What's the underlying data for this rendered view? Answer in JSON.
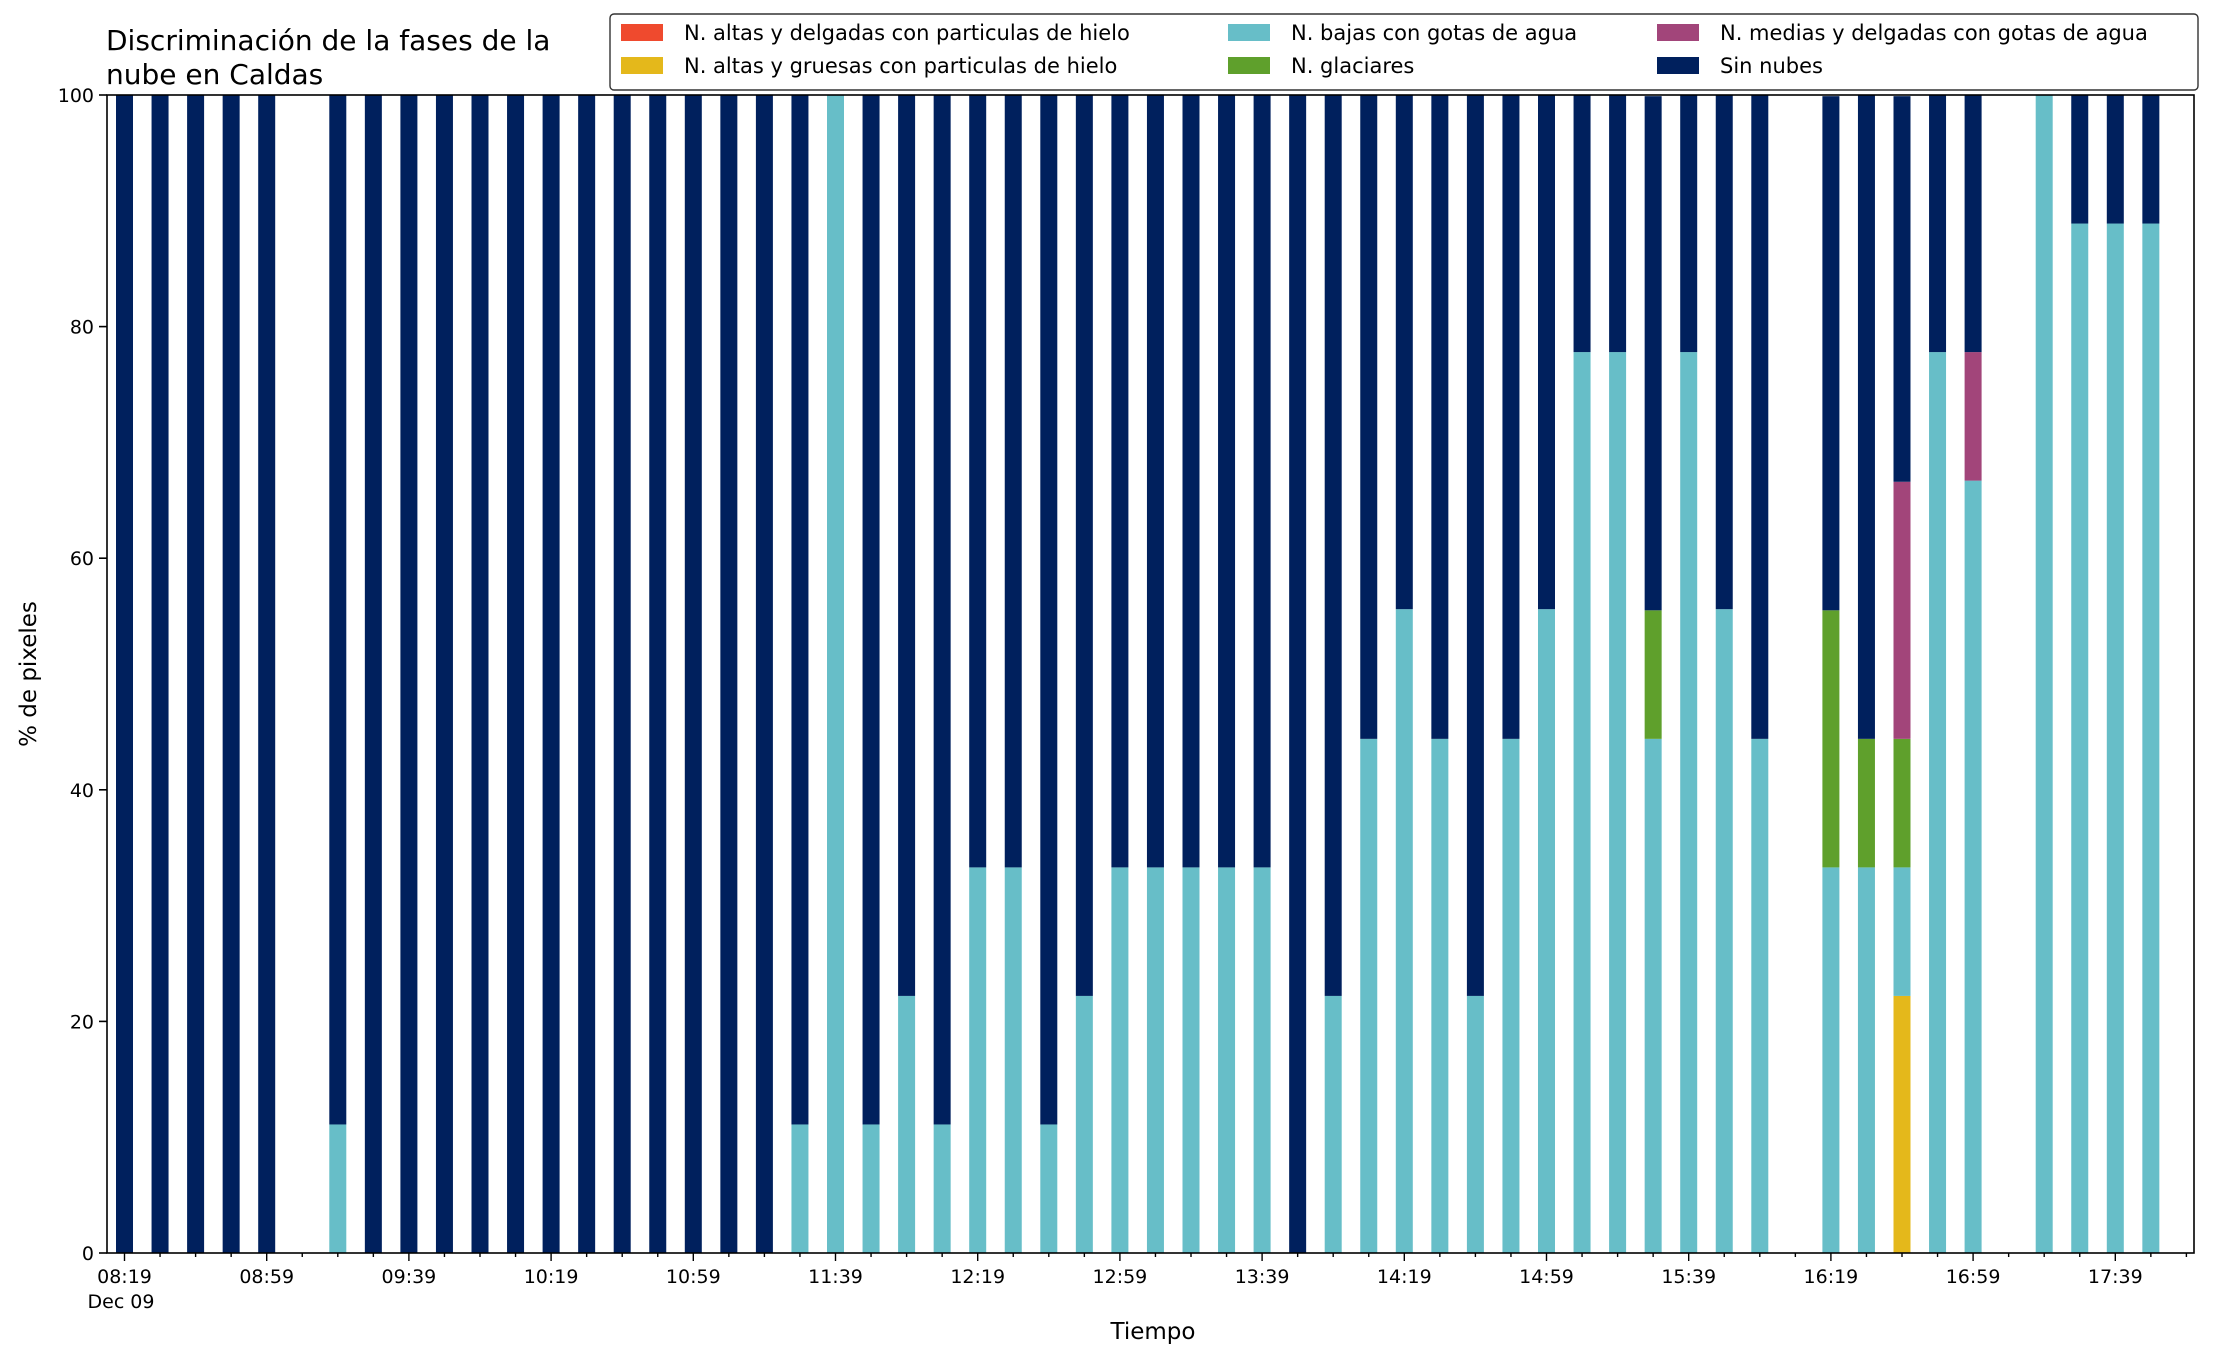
{
  "chart_data": {
    "type": "bar",
    "stacked": true,
    "title": "Discriminación de la fases de la\nnube en Caldas",
    "xlabel": "Tiempo",
    "ylabel": "% de pixeles",
    "ylim": [
      0,
      100
    ],
    "yticks": [
      0,
      20,
      40,
      60,
      80,
      100
    ],
    "legend_position": "top-right",
    "legend_columns": 3,
    "x_start": "08:19",
    "x_date_label": "Dec 09",
    "x_step_minutes": 10,
    "x_tick_labels": [
      "08:19",
      "08:59",
      "09:39",
      "10:19",
      "10:59",
      "11:39",
      "12:19",
      "12:59",
      "13:39",
      "14:19",
      "14:59",
      "15:39",
      "16:19",
      "16:59",
      "17:39"
    ],
    "categories": [
      "08:19",
      "08:29",
      "08:39",
      "08:49",
      "08:59",
      "09:09",
      "09:19",
      "09:29",
      "09:39",
      "09:49",
      "09:59",
      "10:09",
      "10:19",
      "10:29",
      "10:39",
      "10:49",
      "10:59",
      "11:09",
      "11:19",
      "11:29",
      "11:39",
      "11:49",
      "11:59",
      "12:09",
      "12:19",
      "12:29",
      "12:39",
      "12:49",
      "12:59",
      "13:09",
      "13:19",
      "13:29",
      "13:39",
      "13:49",
      "13:59",
      "14:09",
      "14:19",
      "14:29",
      "14:39",
      "14:49",
      "14:59",
      "15:09",
      "15:19",
      "15:29",
      "15:39",
      "15:49",
      "15:59",
      "16:09",
      "16:19",
      "16:29",
      "16:39",
      "16:49",
      "16:59",
      "17:09",
      "17:19",
      "17:29",
      "17:39",
      "17:49"
    ],
    "series": [
      {
        "name": "N. altas y delgadas con particulas de hielo",
        "color": "#ef4a2e",
        "values": [
          0,
          0,
          0,
          0,
          0,
          null,
          0,
          0,
          0,
          0,
          0,
          0,
          0,
          0,
          0,
          0,
          0,
          0,
          0,
          0,
          0,
          0,
          0,
          0,
          0,
          0,
          0,
          0,
          0,
          0,
          0,
          0,
          0,
          0,
          0,
          0,
          0,
          0,
          0,
          0,
          0,
          0,
          0,
          0,
          0,
          0,
          0,
          null,
          0,
          0,
          0,
          0,
          0,
          null,
          0,
          0,
          0,
          0
        ]
      },
      {
        "name": "N. altas y gruesas con particulas de hielo",
        "color": "#e4b81b",
        "values": [
          0,
          0,
          0,
          0,
          0,
          null,
          0,
          0,
          0,
          0,
          0,
          0,
          0,
          0,
          0,
          0,
          0,
          0,
          0,
          0,
          0,
          0,
          0,
          0,
          0,
          0,
          0,
          0,
          0,
          0,
          0,
          0,
          0,
          0,
          0,
          0,
          0,
          0,
          0,
          0,
          0,
          0,
          0,
          0,
          0,
          0,
          0,
          null,
          0,
          0,
          22.2,
          0,
          0,
          null,
          0,
          0,
          0,
          0
        ]
      },
      {
        "name": "N. bajas con gotas de agua",
        "color": "#67bec8",
        "values": [
          0,
          0,
          0,
          0,
          0,
          null,
          11.1,
          0,
          0,
          0,
          0,
          0,
          0,
          0,
          0,
          0,
          0,
          0,
          0,
          11.1,
          100,
          11.1,
          22.2,
          11.1,
          33.3,
          33.3,
          11.1,
          22.2,
          33.3,
          33.3,
          33.3,
          33.3,
          33.3,
          0,
          22.2,
          44.4,
          55.6,
          44.4,
          22.2,
          44.4,
          55.6,
          77.8,
          77.8,
          44.4,
          77.8,
          55.6,
          44.4,
          null,
          33.3,
          33.3,
          11.1,
          77.8,
          66.7,
          null,
          100,
          88.9,
          88.9,
          88.9
        ]
      },
      {
        "name": "N. glaciares",
        "color": "#5fa02c",
        "values": [
          0,
          0,
          0,
          0,
          0,
          null,
          0,
          0,
          0,
          0,
          0,
          0,
          0,
          0,
          0,
          0,
          0,
          0,
          0,
          0,
          0,
          0,
          0,
          0,
          0,
          0,
          0,
          0,
          0,
          0,
          0,
          0,
          0,
          0,
          0,
          0,
          0,
          0,
          0,
          0,
          0,
          0,
          0,
          11.1,
          0,
          0,
          0,
          null,
          22.2,
          11.1,
          11.1,
          0,
          0,
          null,
          0,
          0,
          0,
          0
        ]
      },
      {
        "name": "N. medias y delgadas con gotas de agua",
        "color": "#a2457a",
        "values": [
          0,
          0,
          0,
          0,
          0,
          null,
          0,
          0,
          0,
          0,
          0,
          0,
          0,
          0,
          0,
          0,
          0,
          0,
          0,
          0,
          0,
          0,
          0,
          0,
          0,
          0,
          0,
          0,
          0,
          0,
          0,
          0,
          0,
          0,
          0,
          0,
          0,
          0,
          0,
          0,
          0,
          0,
          0,
          0,
          0,
          0,
          0,
          null,
          0,
          0,
          22.2,
          0,
          11.1,
          null,
          0,
          0,
          0,
          0
        ]
      },
      {
        "name": "Sin nubes",
        "color": "#00205d",
        "values": [
          100,
          100,
          100,
          100,
          100,
          null,
          88.9,
          100,
          100,
          100,
          100,
          100,
          100,
          100,
          100,
          100,
          100,
          100,
          100,
          88.9,
          0,
          88.9,
          77.8,
          88.9,
          66.7,
          66.7,
          88.9,
          77.8,
          66.7,
          66.7,
          66.7,
          66.7,
          66.7,
          100,
          77.8,
          55.6,
          44.4,
          55.6,
          77.8,
          55.6,
          44.4,
          22.2,
          22.2,
          44.4,
          22.2,
          44.4,
          55.6,
          null,
          44.4,
          55.6,
          33.3,
          22.2,
          22.2,
          null,
          0,
          11.1,
          11.1,
          11.1
        ]
      }
    ]
  }
}
